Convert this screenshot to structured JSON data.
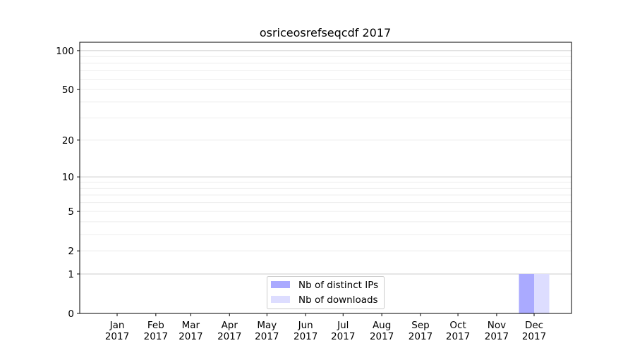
{
  "chart_data": {
    "type": "bar",
    "title": "osriceosrefseqcdf 2017",
    "xlabel": "",
    "ylabel": "",
    "y_scale": "log(1+y)",
    "ylim": [
      0,
      116
    ],
    "y_ticks": [
      0,
      1,
      2,
      5,
      10,
      20,
      50,
      100
    ],
    "x_ticks": [
      {
        "month": 1,
        "label1": "Jan",
        "label2": "2017"
      },
      {
        "month": 2,
        "label1": "Feb",
        "label2": "2017"
      },
      {
        "month": 3,
        "label1": "Mar",
        "label2": "2017"
      },
      {
        "month": 4,
        "label1": "Apr",
        "label2": "2017"
      },
      {
        "month": 5,
        "label1": "May",
        "label2": "2017"
      },
      {
        "month": 6,
        "label1": "Jun",
        "label2": "2017"
      },
      {
        "month": 7,
        "label1": "Jul",
        "label2": "2017"
      },
      {
        "month": 8,
        "label1": "Aug",
        "label2": "2017"
      },
      {
        "month": 9,
        "label1": "Sep",
        "label2": "2017"
      },
      {
        "month": 10,
        "label1": "Oct",
        "label2": "2017"
      },
      {
        "month": 11,
        "label1": "Nov",
        "label2": "2017"
      },
      {
        "month": 12,
        "label1": "Dec",
        "label2": "2017"
      }
    ],
    "categories": [
      "Jan 2017",
      "Feb 2017",
      "Mar 2017",
      "Apr 2017",
      "May 2017",
      "Jun 2017",
      "Jul 2017",
      "Aug 2017",
      "Sep 2017",
      "Oct 2017",
      "Nov 2017",
      "Dec 2017"
    ],
    "series": [
      {
        "name": "Nb of distinct IPs",
        "color": "#aaaaff",
        "values": [
          0,
          0,
          0,
          0,
          0,
          0,
          0,
          0,
          0,
          0,
          0,
          1
        ]
      },
      {
        "name": "Nb of downloads",
        "color": "#ddddff",
        "values": [
          0,
          0,
          0,
          0,
          0,
          0,
          0,
          0,
          0,
          0,
          0,
          1
        ]
      }
    ],
    "grid": true,
    "legend_position": "lower-center"
  }
}
